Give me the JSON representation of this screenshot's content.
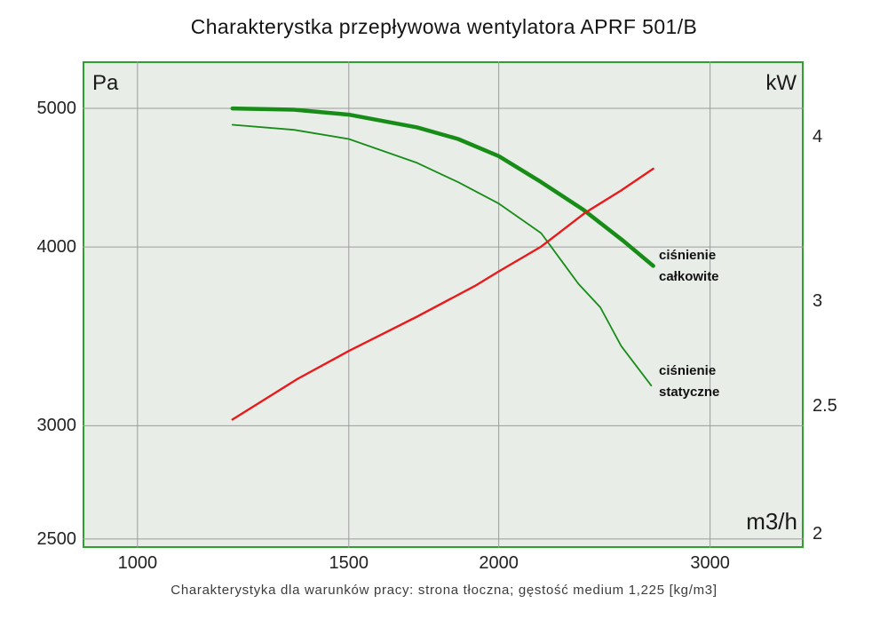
{
  "title": "Charakterystka przepływowa wentylatora APRF 501/B",
  "caption": "Charakterystyka dla warunków pracy: strona tłoczna; gęstość medium 1,225 [kg/m3]",
  "units": {
    "left": "Pa",
    "right": "kW",
    "x": "m3/h"
  },
  "colors": {
    "curve_green": "#178c17",
    "curve_red": "#e81a1c",
    "plot_background": "#e8ede8",
    "plot_border": "#2da02d",
    "gridline": "#9c9c9c"
  },
  "chart_data": {
    "type": "line",
    "title": "Charakterystka przepływowa wentylatora APRF 501/B",
    "xlabel": "m3/h",
    "ylabel_left": "Pa",
    "ylabel_right": "kW",
    "grid": true,
    "x_axis": {
      "scale": "log",
      "range": [
        900,
        3590
      ],
      "ticks": [
        1000,
        1500,
        2000,
        3000
      ]
    },
    "y_axis_left": {
      "scale": "log",
      "range": [
        2464,
        5394
      ],
      "ticks": [
        5000,
        4000,
        3000,
        2500
      ]
    },
    "y_axis_right": {
      "scale": "log",
      "range": [
        1.95,
        4.56
      ],
      "ticks": [
        4,
        3,
        2.5,
        2
      ]
    },
    "series": [
      {
        "id": "total-pressure",
        "name": "ciśnienie całkowite",
        "axis": "left",
        "color": "#178c17",
        "stroke_width": 4.5,
        "points": [
          [
            1200,
            5000
          ],
          [
            1350,
            4990
          ],
          [
            1500,
            4950
          ],
          [
            1710,
            4850
          ],
          [
            1850,
            4760
          ],
          [
            2000,
            4630
          ],
          [
            2170,
            4440
          ],
          [
            2350,
            4250
          ],
          [
            2540,
            4040
          ],
          [
            2690,
            3880
          ]
        ]
      },
      {
        "id": "static-pressure",
        "name": "ciśnienie statyczne",
        "axis": "left",
        "color": "#178c17",
        "stroke_width": 1.8,
        "points": [
          [
            1200,
            4870
          ],
          [
            1350,
            4830
          ],
          [
            1500,
            4760
          ],
          [
            1710,
            4580
          ],
          [
            1850,
            4440
          ],
          [
            2000,
            4290
          ],
          [
            2170,
            4090
          ],
          [
            2330,
            3770
          ],
          [
            2430,
            3630
          ],
          [
            2530,
            3410
          ],
          [
            2680,
            3200
          ]
        ]
      },
      {
        "id": "red-curve",
        "axis": "right",
        "color": "#e81a1c",
        "stroke_width": 2.4,
        "points": [
          [
            1200,
            2.44
          ],
          [
            1360,
            2.62
          ],
          [
            1500,
            2.75
          ],
          [
            1710,
            2.92
          ],
          [
            1910,
            3.08
          ],
          [
            2000,
            3.16
          ],
          [
            2170,
            3.3
          ],
          [
            2360,
            3.5
          ],
          [
            2530,
            3.64
          ],
          [
            2690,
            3.78
          ]
        ]
      }
    ]
  }
}
